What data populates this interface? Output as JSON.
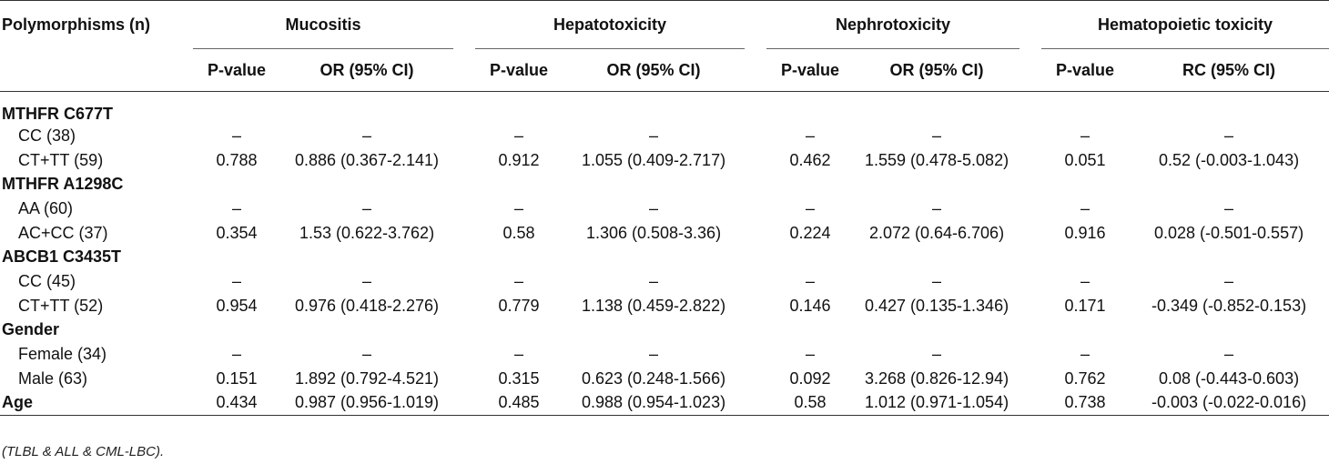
{
  "table": {
    "first_header": "Polymorphisms (n)",
    "groups": [
      "Mucositis",
      "Hepatotoxicity",
      "Nephrotoxicity",
      "Hematopoietic toxicity"
    ],
    "subheaders": [
      [
        "P-value",
        "OR (95% CI)"
      ],
      [
        "P-value",
        "OR (95% CI)"
      ],
      [
        "P-value",
        "OR (95% CI)"
      ],
      [
        "P-value",
        "RC (95% CI)"
      ]
    ],
    "sections": [
      {
        "title": "MTHFR C677T",
        "rows": [
          {
            "label": "CC (38)",
            "values": [
              "–",
              "–",
              "–",
              "–",
              "–",
              "–",
              "–",
              "–"
            ]
          },
          {
            "label": "CT+TT (59)",
            "values": [
              "0.788",
              "0.886 (0.367-2.141)",
              "0.912",
              "1.055 (0.409-2.717)",
              "0.462",
              "1.559 (0.478-5.082)",
              "0.051",
              "0.52 (-0.003-1.043)"
            ]
          }
        ]
      },
      {
        "title": "MTHFR A1298C",
        "rows": [
          {
            "label": "AA (60)",
            "values": [
              "–",
              "–",
              "–",
              "–",
              "–",
              "–",
              "–",
              "–"
            ]
          },
          {
            "label": "AC+CC (37)",
            "values": [
              "0.354",
              "1.53 (0.622-3.762)",
              "0.58",
              "1.306 (0.508-3.36)",
              "0.224",
              "2.072 (0.64-6.706)",
              "0.916",
              "0.028 (-0.501-0.557)"
            ]
          }
        ]
      },
      {
        "title": "ABCB1 C3435T",
        "rows": [
          {
            "label": "CC (45)",
            "values": [
              "–",
              "–",
              "–",
              "–",
              "–",
              "–",
              "–",
              "–"
            ]
          },
          {
            "label": "CT+TT (52)",
            "values": [
              "0.954",
              "0.976 (0.418-2.276)",
              "0.779",
              "1.138 (0.459-2.822)",
              "0.146",
              "0.427 (0.135-1.346)",
              "0.171",
              "-0.349 (-0.852-0.153)"
            ]
          }
        ]
      },
      {
        "title": "Gender",
        "rows": [
          {
            "label": "Female (34)",
            "values": [
              "–",
              "–",
              "–",
              "–",
              "–",
              "–",
              "–",
              "–"
            ]
          },
          {
            "label": "Male (63)",
            "values": [
              "0.151",
              "1.892 (0.792-4.521)",
              "0.315",
              "0.623 (0.248-1.566)",
              "0.092",
              "3.268 (0.826-12.94)",
              "0.762",
              "0.08 (-0.443-0.603)"
            ]
          }
        ]
      }
    ],
    "age_row": {
      "label": "Age",
      "values": [
        "0.434",
        "0.987 (0.956-1.019)",
        "0.485",
        "0.988 (0.954-1.023)",
        "0.58",
        "1.012 (0.971-1.054)",
        "0.738",
        "-0.003 (-0.022-0.016)"
      ]
    },
    "footnote": "(TLBL & ALL & CML-LBC)."
  }
}
